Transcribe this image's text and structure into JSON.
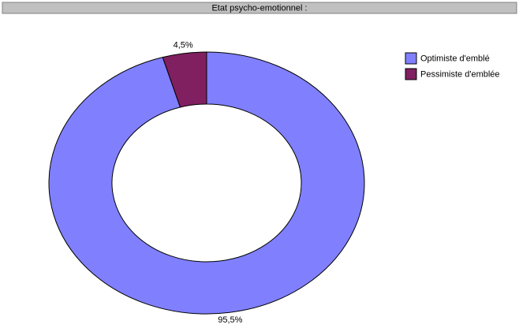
{
  "chart_data": {
    "type": "donut",
    "title": "Etat psycho-emotionnel :",
    "categories": [
      "Optimiste d'emblé",
      "Pessimiste d'emblée"
    ],
    "values": [
      95.5,
      4.5
    ],
    "value_labels": [
      "95,5%",
      "4,5%"
    ],
    "colors": [
      "#8080ff",
      "#802060"
    ],
    "legend": "right"
  }
}
